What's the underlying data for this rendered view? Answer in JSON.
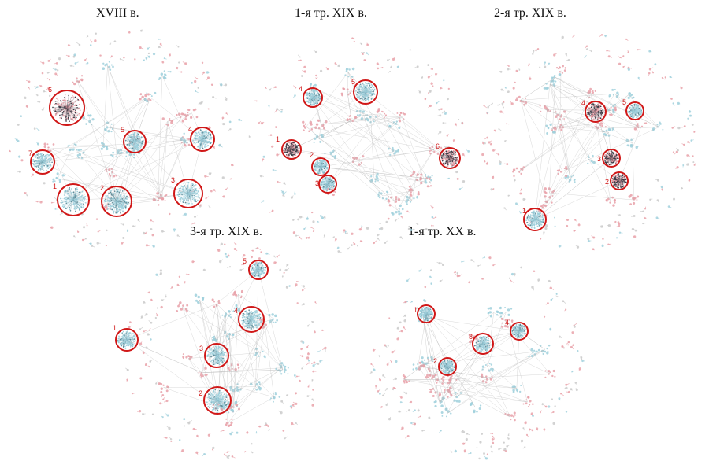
{
  "panels": [
    {
      "title": "XVIII в.",
      "clusters": [
        "1",
        "2",
        "3",
        "4",
        "5",
        "6",
        "7"
      ]
    },
    {
      "title": "1-я тр. XIX в.",
      "clusters": [
        "1",
        "2",
        "3",
        "4",
        "5",
        "6"
      ]
    },
    {
      "title": "2-я тр. XIX в.",
      "clusters": [
        "1",
        "2",
        "3",
        "4",
        "5"
      ]
    },
    {
      "title": "3-я тр. XIX в.",
      "clusters": [
        "1",
        "2",
        "3",
        "4",
        "5"
      ]
    },
    {
      "title": "1-я тр. XX в.",
      "clusters": [
        "1",
        "2",
        "3",
        "4"
      ]
    }
  ],
  "colors": {
    "highlight_circle": "#d01818",
    "cluster_fill": "#9fd0dc",
    "cluster_dark": "#3a3a44",
    "pink_node": "#e8a0a8",
    "edge": "#b8b8b8"
  }
}
